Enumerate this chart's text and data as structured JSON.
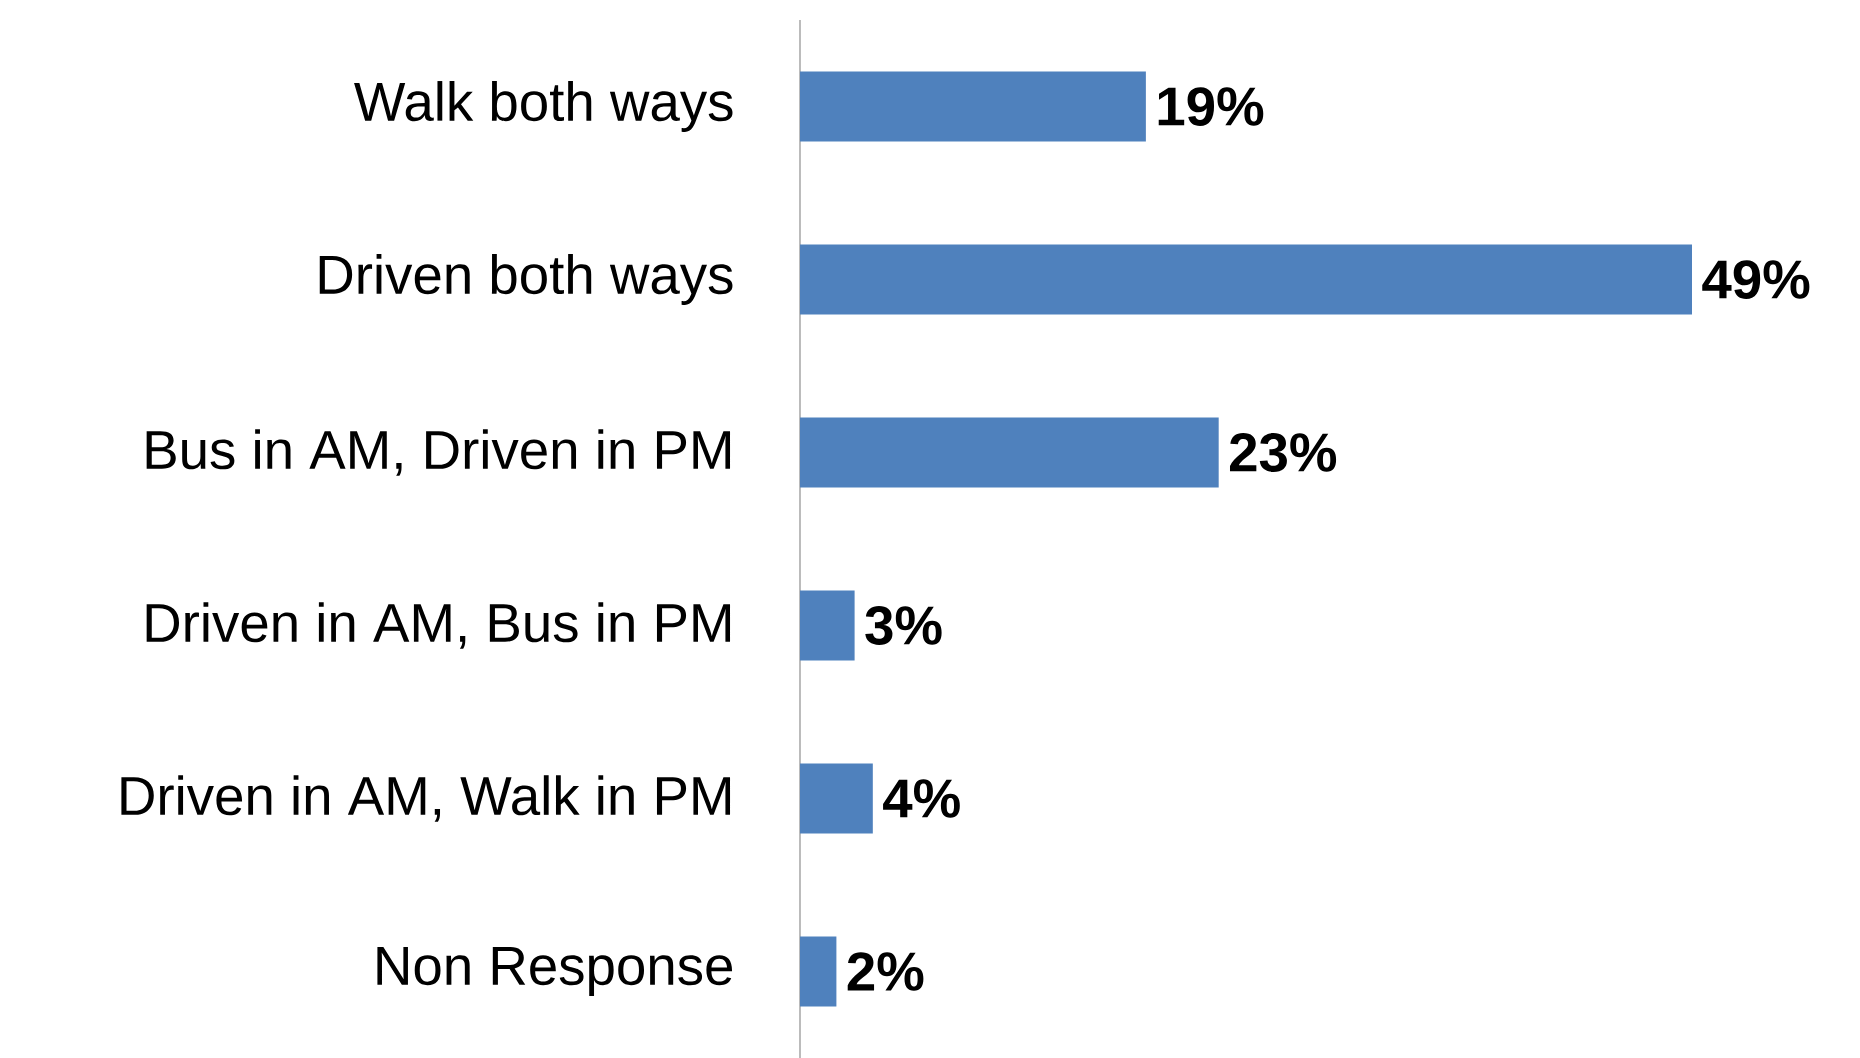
{
  "chart_data": {
    "type": "bar",
    "orientation": "horizontal",
    "categories": [
      "Walk both ways",
      "Driven both ways",
      "Bus in AM, Driven in PM",
      "Driven in AM, Bus in PM",
      "Driven in AM, Walk in PM",
      "Non Response"
    ],
    "values": [
      19,
      49,
      23,
      3,
      4,
      2
    ],
    "value_labels": [
      "19%",
      "49%",
      "23%",
      "3%",
      "4%",
      "2%"
    ],
    "color": "#4f81bd"
  }
}
